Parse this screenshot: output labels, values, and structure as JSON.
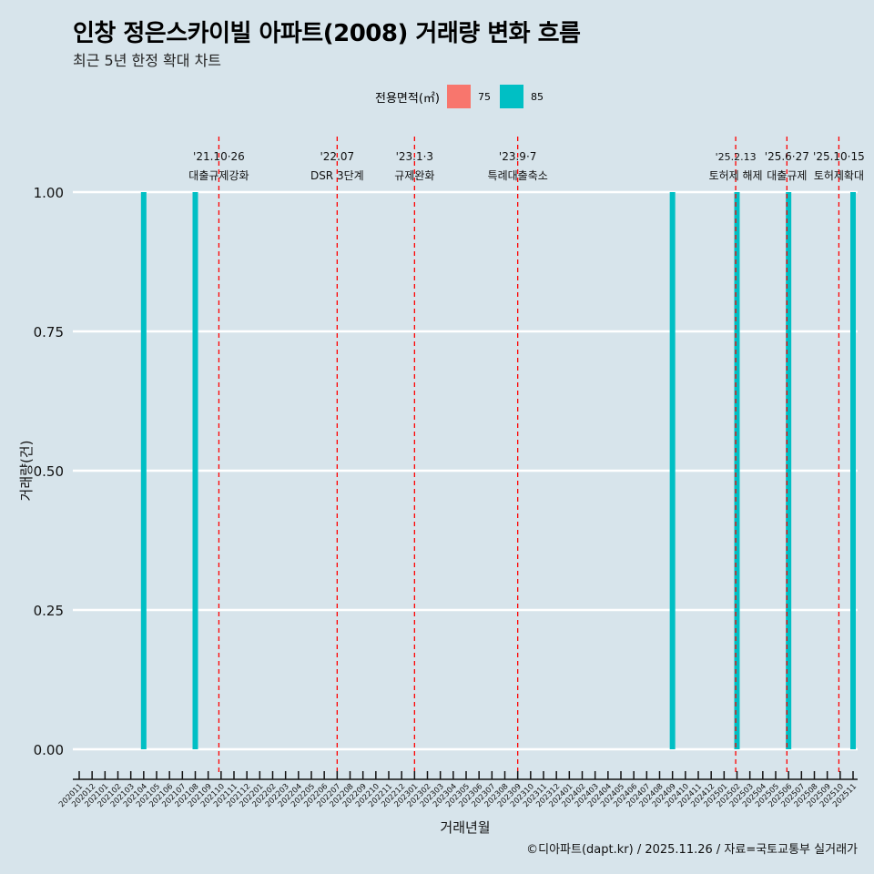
{
  "chart_data": {
    "type": "bar",
    "title": "인창 정은스카이빌 아파트(2008) 거래량 변화 흐름",
    "subtitle": "최근 5년 한정 확대 차트",
    "xlabel": "거래년월",
    "ylabel": "거래량(건)",
    "ylim": [
      0,
      1
    ],
    "yticks": [
      "0.00",
      "0.25",
      "0.50",
      "0.75",
      "1.00"
    ],
    "categories": [
      "202011",
      "202012",
      "202101",
      "202102",
      "202103",
      "202104",
      "202105",
      "202106",
      "202107",
      "202108",
      "202109",
      "202110",
      "202111",
      "202112",
      "202201",
      "202202",
      "202203",
      "202204",
      "202205",
      "202206",
      "202207",
      "202208",
      "202209",
      "202210",
      "202211",
      "202212",
      "202301",
      "202302",
      "202303",
      "202304",
      "202305",
      "202306",
      "202307",
      "202308",
      "202309",
      "202310",
      "202311",
      "202312",
      "202401",
      "202402",
      "202403",
      "202404",
      "202405",
      "202406",
      "202407",
      "202408",
      "202409",
      "202410",
      "202411",
      "202412",
      "202501",
      "202502",
      "202503",
      "202504",
      "202505",
      "202506",
      "202507",
      "202508",
      "202509",
      "202510",
      "202511"
    ],
    "legend": {
      "title": "전용면적(㎡)",
      "position": "top",
      "entries": [
        {
          "name": "75",
          "color": "#f8766d"
        },
        {
          "name": "85",
          "color": "#00bfc4"
        }
      ]
    },
    "series": [
      {
        "name": "85",
        "color": "#00bfc4",
        "points": [
          {
            "x": "202104",
            "y": 1
          },
          {
            "x": "202108",
            "y": 1
          },
          {
            "x": "202409",
            "y": 1
          },
          {
            "x": "202502",
            "y": 1
          },
          {
            "x": "202506",
            "y": 1
          },
          {
            "x": "202511",
            "y": 1
          }
        ]
      },
      {
        "name": "75",
        "color": "#f8766d",
        "points": []
      }
    ],
    "annotations": [
      {
        "pos": 10.83,
        "date": "'21.10·26",
        "text": "대출규제강화"
      },
      {
        "pos": 20,
        "date": "'22.07",
        "text": "DSR 3단계"
      },
      {
        "pos": 26,
        "date": "'23.1·3",
        "text": "규제완화"
      },
      {
        "pos": 34,
        "date": "'23.9·7",
        "text": "특례대출축소"
      },
      {
        "pos": 50.9,
        "date": "'25.2.13",
        "text": "토허제 해제"
      },
      {
        "pos": 54.87,
        "date": "'25.6·27",
        "text": "대출규제"
      },
      {
        "pos": 58.9,
        "date": "'25.10·15",
        "text": "토허제확대"
      }
    ],
    "caption": "©디아파트(dapt.kr) / 2025.11.26 / 자료=국토교통부 실거래가"
  }
}
